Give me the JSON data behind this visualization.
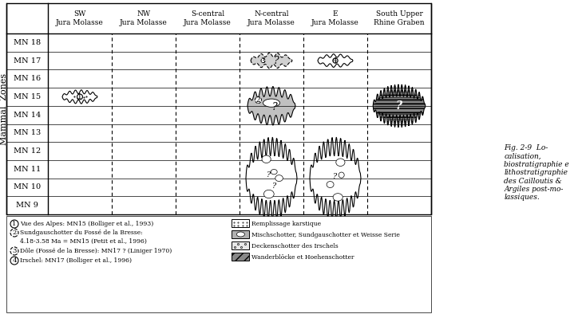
{
  "title": "Fig. 2-9 Localisation, biostratigraphie et lithostratigraphie des Cailloutis & Argiles post-molassiques.",
  "columns": [
    "SW\nJura Molasse",
    "NW\nJura Molasse",
    "S-central\nJura Molasse",
    "N-central\nJura Molasse",
    "E\nJura Molasse",
    "South Upper\nRhine Graben"
  ],
  "mn_zones": [
    "MN 18",
    "MN 17",
    "MN 16",
    "MN 15",
    "MN 14",
    "MN 13",
    "MN 12",
    "MN 11",
    "MN 10",
    "MN 9"
  ],
  "legend_items_left": [
    {
      "num": "1",
      "text": "Vue des Alpes: MN15 (Bolliger et al., 1993)",
      "solid": true
    },
    {
      "num": "2",
      "text": "Sundgauschotter du Fossé de la Bresse:\n4.18-3.58 Ma = MN15 (Petit et al., 1996)",
      "dashed": true
    },
    {
      "num": "3",
      "text": "Dôle (Fossé de la Bresse): MN17 ? (Liniger 1970)",
      "dashed": true
    },
    {
      "num": "4",
      "text": "Irschel: MN17 (Bolliger et al., 1996)",
      "solid": true
    }
  ],
  "legend_items_right": [
    {
      "label": "Remplissage karstique",
      "type": "karst"
    },
    {
      "label": "Mischschotter, Sundgauschotter et Weisse Serie",
      "type": "misch"
    },
    {
      "label": "Deckenschotter des Irschels",
      "type": "deck"
    },
    {
      "label": "Wanderblöcke et Hoehenschotter",
      "type": "wander"
    }
  ],
  "bg_color": "#ffffff",
  "grid_color": "#000000",
  "text_color": "#000000"
}
